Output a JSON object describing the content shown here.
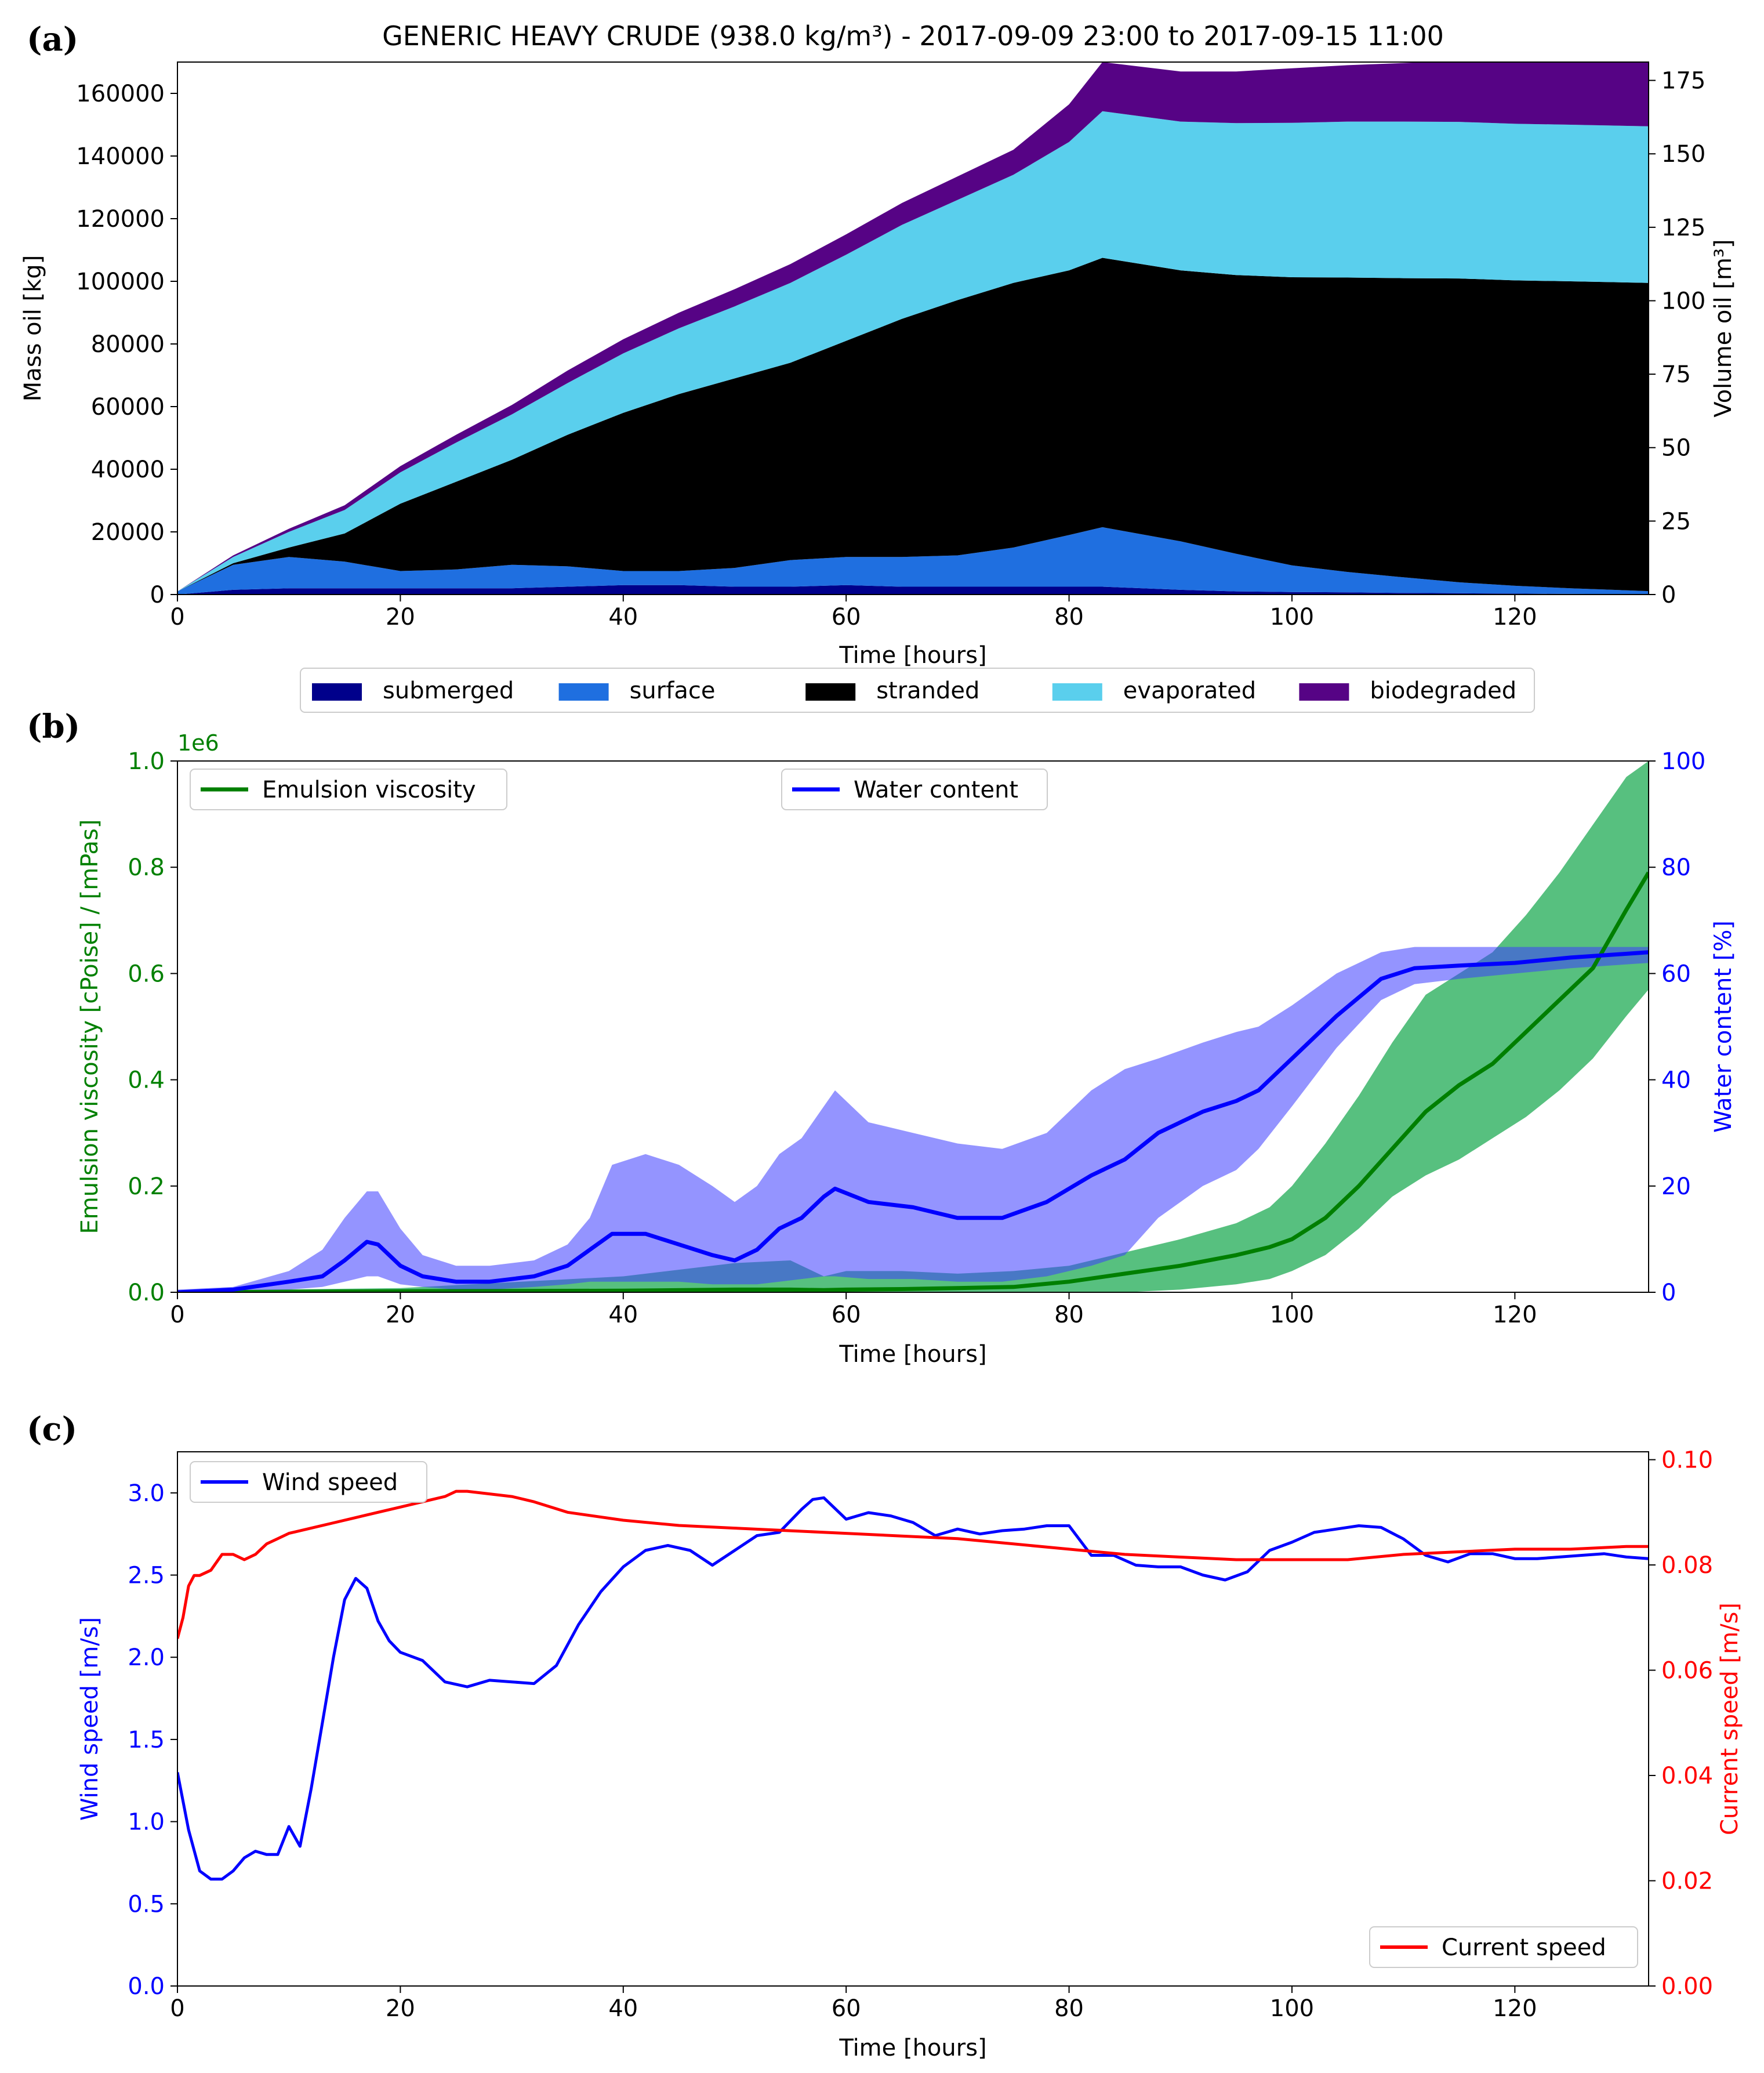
{
  "chart_data": [
    {
      "panel_label": "(a)",
      "type": "area",
      "title": "GENERIC HEAVY CRUDE (938.0 kg/m³) - 2017-09-09 23:00 to 2017-09-15 11:00",
      "xlabel": "Time  [hours]",
      "ylabel": "Mass oil  [kg]",
      "ylabel_right": "Volume oil [m³]",
      "xlim": [
        0,
        132
      ],
      "ylim": [
        0,
        170000
      ],
      "ylim_right": [
        0,
        181.24
      ],
      "xticks": [
        0,
        20,
        40,
        60,
        80,
        100,
        120
      ],
      "yticks": [
        0,
        20000,
        40000,
        60000,
        80000,
        100000,
        120000,
        140000,
        160000
      ],
      "yticks_right": [
        0,
        25,
        50,
        75,
        100,
        125,
        150,
        175
      ],
      "legend_position": "below",
      "stacked": true,
      "x": [
        0,
        5,
        10,
        15,
        20,
        25,
        30,
        35,
        40,
        45,
        50,
        55,
        60,
        65,
        70,
        75,
        80,
        83,
        90,
        95,
        100,
        105,
        110,
        115,
        120,
        125,
        132
      ],
      "series": [
        {
          "name": "submerged",
          "color": "#00008b",
          "values": [
            0,
            1500,
            2000,
            2000,
            2000,
            2000,
            2000,
            2500,
            3000,
            3000,
            2500,
            2500,
            3000,
            2500,
            2500,
            2500,
            2500,
            2500,
            1500,
            1000,
            800,
            700,
            500,
            400,
            300,
            200,
            100
          ]
        },
        {
          "name": "surface",
          "color": "#1f6fe0",
          "values": [
            1000,
            8000,
            10000,
            8500,
            5500,
            6000,
            7500,
            6500,
            4500,
            4500,
            6000,
            8500,
            9000,
            9500,
            10000,
            12500,
            16500,
            19000,
            15500,
            12000,
            8500,
            6500,
            5000,
            3500,
            2500,
            1800,
            1000
          ]
        },
        {
          "name": "stranded",
          "color": "#000000",
          "values": [
            0,
            500,
            3000,
            9000,
            21500,
            28000,
            33500,
            42000,
            50500,
            56500,
            60500,
            63000,
            69000,
            76000,
            81500,
            84500,
            84500,
            86000,
            86500,
            89000,
            92000,
            94000,
            95500,
            97000,
            97500,
            98000,
            98400
          ]
        },
        {
          "name": "evaporated",
          "color": "#5acfed",
          "values": [
            0,
            2000,
            5000,
            7500,
            10000,
            12500,
            14500,
            16500,
            19000,
            21000,
            23000,
            25500,
            27500,
            30000,
            32000,
            34500,
            41000,
            46800,
            47500,
            48500,
            49300,
            49800,
            50000,
            50000,
            50000,
            50000,
            50000
          ]
        },
        {
          "name": "biodegraded",
          "color": "#560385",
          "values": [
            0,
            500,
            1000,
            1500,
            2000,
            2500,
            3000,
            4000,
            4500,
            5000,
            5500,
            6000,
            6500,
            7000,
            7500,
            8000,
            12000,
            15700,
            16000,
            16500,
            17400,
            18000,
            18700,
            19500,
            20100,
            20500,
            21000
          ]
        }
      ]
    },
    {
      "panel_label": "(b)",
      "type": "line",
      "xlabel": "Time [hours]",
      "ylabel": "Emulsion viscosity  [cPoise] / [mPas]",
      "ylabel_right": "Water content  [%]",
      "offset_label": "1e6",
      "xlim": [
        0,
        132
      ],
      "ylim": [
        0,
        1.0
      ],
      "ylim_right": [
        0,
        100
      ],
      "xticks": [
        0,
        20,
        40,
        60,
        80,
        100,
        120
      ],
      "yticks": [
        0.0,
        0.2,
        0.4,
        0.6,
        0.8,
        1.0
      ],
      "yticks_right": [
        0,
        20,
        40,
        60,
        80,
        100
      ],
      "series": [
        {
          "name": "Emulsion viscosity",
          "axis": "left",
          "color": "#007f00",
          "legend_position": "top-left",
          "x": [
            0,
            20,
            40,
            50,
            55,
            58,
            60,
            65,
            70,
            75,
            80,
            85,
            90,
            95,
            98,
            100,
            103,
            106,
            109,
            112,
            115,
            118,
            121,
            124,
            127,
            130,
            132
          ],
          "values": [
            0,
            0.002,
            0.003,
            0.005,
            0.005,
            0.004,
            0.005,
            0.006,
            0.008,
            0.01,
            0.02,
            0.035,
            0.05,
            0.07,
            0.085,
            0.1,
            0.14,
            0.2,
            0.27,
            0.34,
            0.39,
            0.43,
            0.49,
            0.55,
            0.61,
            0.72,
            0.79
          ],
          "band_low": [
            0,
            0,
            0,
            0,
            0,
            0,
            0,
            0,
            0,
            0,
            0,
            0,
            0.005,
            0.015,
            0.025,
            0.04,
            0.07,
            0.12,
            0.18,
            0.22,
            0.25,
            0.29,
            0.33,
            0.38,
            0.44,
            0.52,
            0.57
          ],
          "band_high": [
            0.003,
            0.008,
            0.03,
            0.055,
            0.06,
            0.03,
            0.04,
            0.04,
            0.035,
            0.04,
            0.05,
            0.075,
            0.1,
            0.13,
            0.16,
            0.2,
            0.28,
            0.37,
            0.47,
            0.56,
            0.6,
            0.64,
            0.71,
            0.79,
            0.88,
            0.97,
            1.0
          ]
        },
        {
          "name": "Water content",
          "axis": "right",
          "color": "#0000ff",
          "legend_position": "top-center",
          "x": [
            0,
            5,
            10,
            13,
            15,
            17,
            18,
            20,
            22,
            25,
            28,
            32,
            35,
            37,
            39,
            42,
            45,
            48,
            50,
            52,
            54,
            56,
            58,
            59,
            62,
            66,
            70,
            74,
            78,
            82,
            85,
            88,
            92,
            95,
            97,
            100,
            104,
            108,
            111,
            115,
            120,
            125,
            132
          ],
          "values": [
            0,
            0.5,
            2,
            3,
            6,
            9.5,
            9,
            5,
            3,
            2,
            2,
            3,
            5,
            8,
            11,
            11,
            9,
            7,
            6,
            8,
            12,
            14,
            18,
            19.5,
            17,
            16,
            14,
            14,
            17,
            22,
            25,
            30,
            34,
            36,
            38,
            44,
            52,
            59,
            61,
            61.5,
            62,
            63,
            64
          ],
          "band_low": [
            0,
            0,
            0.5,
            1,
            2,
            3,
            3,
            1.5,
            1,
            0.5,
            0.5,
            1,
            1.5,
            2,
            2,
            2,
            2,
            1.5,
            1.5,
            1.5,
            2,
            2.5,
            3,
            3,
            2.5,
            2.5,
            2,
            2,
            3,
            5,
            7,
            14,
            20,
            23,
            27,
            35,
            46,
            55,
            58,
            59,
            60,
            61,
            62
          ],
          "band_high": [
            0.5,
            1,
            4,
            8,
            14,
            19,
            19,
            12,
            7,
            5,
            5,
            6,
            9,
            14,
            24,
            26,
            24,
            20,
            17,
            20,
            26,
            29,
            35,
            38,
            32,
            30,
            28,
            27,
            30,
            38,
            42,
            44,
            47,
            49,
            50,
            54,
            60,
            64,
            65,
            65,
            65,
            65,
            65
          ]
        }
      ]
    },
    {
      "panel_label": "(c)",
      "type": "line",
      "xlabel": "Time  [hours]",
      "ylabel": "Wind speed  [m/s]",
      "ylabel_right": "Current speed  [m/s]",
      "xlim": [
        0,
        132
      ],
      "ylim": [
        0,
        3.25
      ],
      "ylim_right": [
        0,
        0.1015
      ],
      "xticks": [
        0,
        20,
        40,
        60,
        80,
        100,
        120
      ],
      "yticks": [
        0.0,
        0.5,
        1.0,
        1.5,
        2.0,
        2.5,
        3.0
      ],
      "yticks_right": [
        0.0,
        0.02,
        0.04,
        0.06,
        0.08,
        0.1
      ],
      "series": [
        {
          "name": "Wind speed",
          "axis": "left",
          "color": "#0000ff",
          "legend_position": "top-left",
          "x": [
            0,
            1,
            2,
            3,
            4,
            5,
            6,
            7,
            8,
            9,
            10,
            11,
            12,
            13,
            14,
            15,
            16,
            17,
            18,
            19,
            20,
            22,
            24,
            26,
            28,
            30,
            32,
            34,
            36,
            38,
            40,
            42,
            44,
            46,
            48,
            50,
            52,
            54,
            56,
            57,
            58,
            60,
            62,
            64,
            66,
            68,
            70,
            72,
            74,
            76,
            78,
            80,
            82,
            84,
            86,
            88,
            90,
            92,
            94,
            96,
            98,
            100,
            102,
            104,
            106,
            108,
            110,
            112,
            114,
            116,
            118,
            120,
            122,
            124,
            126,
            128,
            130,
            132
          ],
          "values": [
            1.3,
            0.95,
            0.7,
            0.65,
            0.65,
            0.7,
            0.78,
            0.82,
            0.8,
            0.8,
            0.97,
            0.85,
            1.2,
            1.6,
            2.0,
            2.35,
            2.48,
            2.42,
            2.22,
            2.1,
            2.03,
            1.98,
            1.85,
            1.82,
            1.86,
            1.85,
            1.84,
            1.95,
            2.2,
            2.4,
            2.55,
            2.65,
            2.68,
            2.65,
            2.56,
            2.65,
            2.74,
            2.76,
            2.9,
            2.96,
            2.97,
            2.84,
            2.88,
            2.86,
            2.82,
            2.74,
            2.78,
            2.75,
            2.77,
            2.78,
            2.8,
            2.8,
            2.62,
            2.62,
            2.56,
            2.55,
            2.55,
            2.5,
            2.47,
            2.52,
            2.65,
            2.7,
            2.76,
            2.78,
            2.8,
            2.79,
            2.72,
            2.62,
            2.58,
            2.63,
            2.63,
            2.6,
            2.6,
            2.61,
            2.62,
            2.63,
            2.61,
            2.6
          ]
        },
        {
          "name": "Current speed",
          "axis": "right",
          "color": "#ff0000",
          "legend_position": "bottom-right",
          "x": [
            0,
            0.5,
            1,
            1.5,
            2,
            3,
            4,
            5,
            6,
            7,
            8,
            9,
            10,
            12,
            14,
            16,
            18,
            20,
            22,
            24,
            25,
            26,
            28,
            30,
            32,
            35,
            40,
            45,
            50,
            55,
            60,
            65,
            70,
            75,
            80,
            85,
            90,
            95,
            100,
            105,
            110,
            115,
            120,
            125,
            130,
            132
          ],
          "values": [
            0.066,
            0.07,
            0.076,
            0.078,
            0.078,
            0.079,
            0.082,
            0.082,
            0.081,
            0.082,
            0.084,
            0.085,
            0.086,
            0.087,
            0.088,
            0.089,
            0.09,
            0.091,
            0.092,
            0.093,
            0.094,
            0.094,
            0.0935,
            0.093,
            0.092,
            0.09,
            0.0885,
            0.0875,
            0.087,
            0.0865,
            0.086,
            0.0855,
            0.085,
            0.084,
            0.083,
            0.082,
            0.0815,
            0.081,
            0.081,
            0.081,
            0.082,
            0.0825,
            0.083,
            0.083,
            0.0835,
            0.0835
          ]
        }
      ]
    }
  ]
}
